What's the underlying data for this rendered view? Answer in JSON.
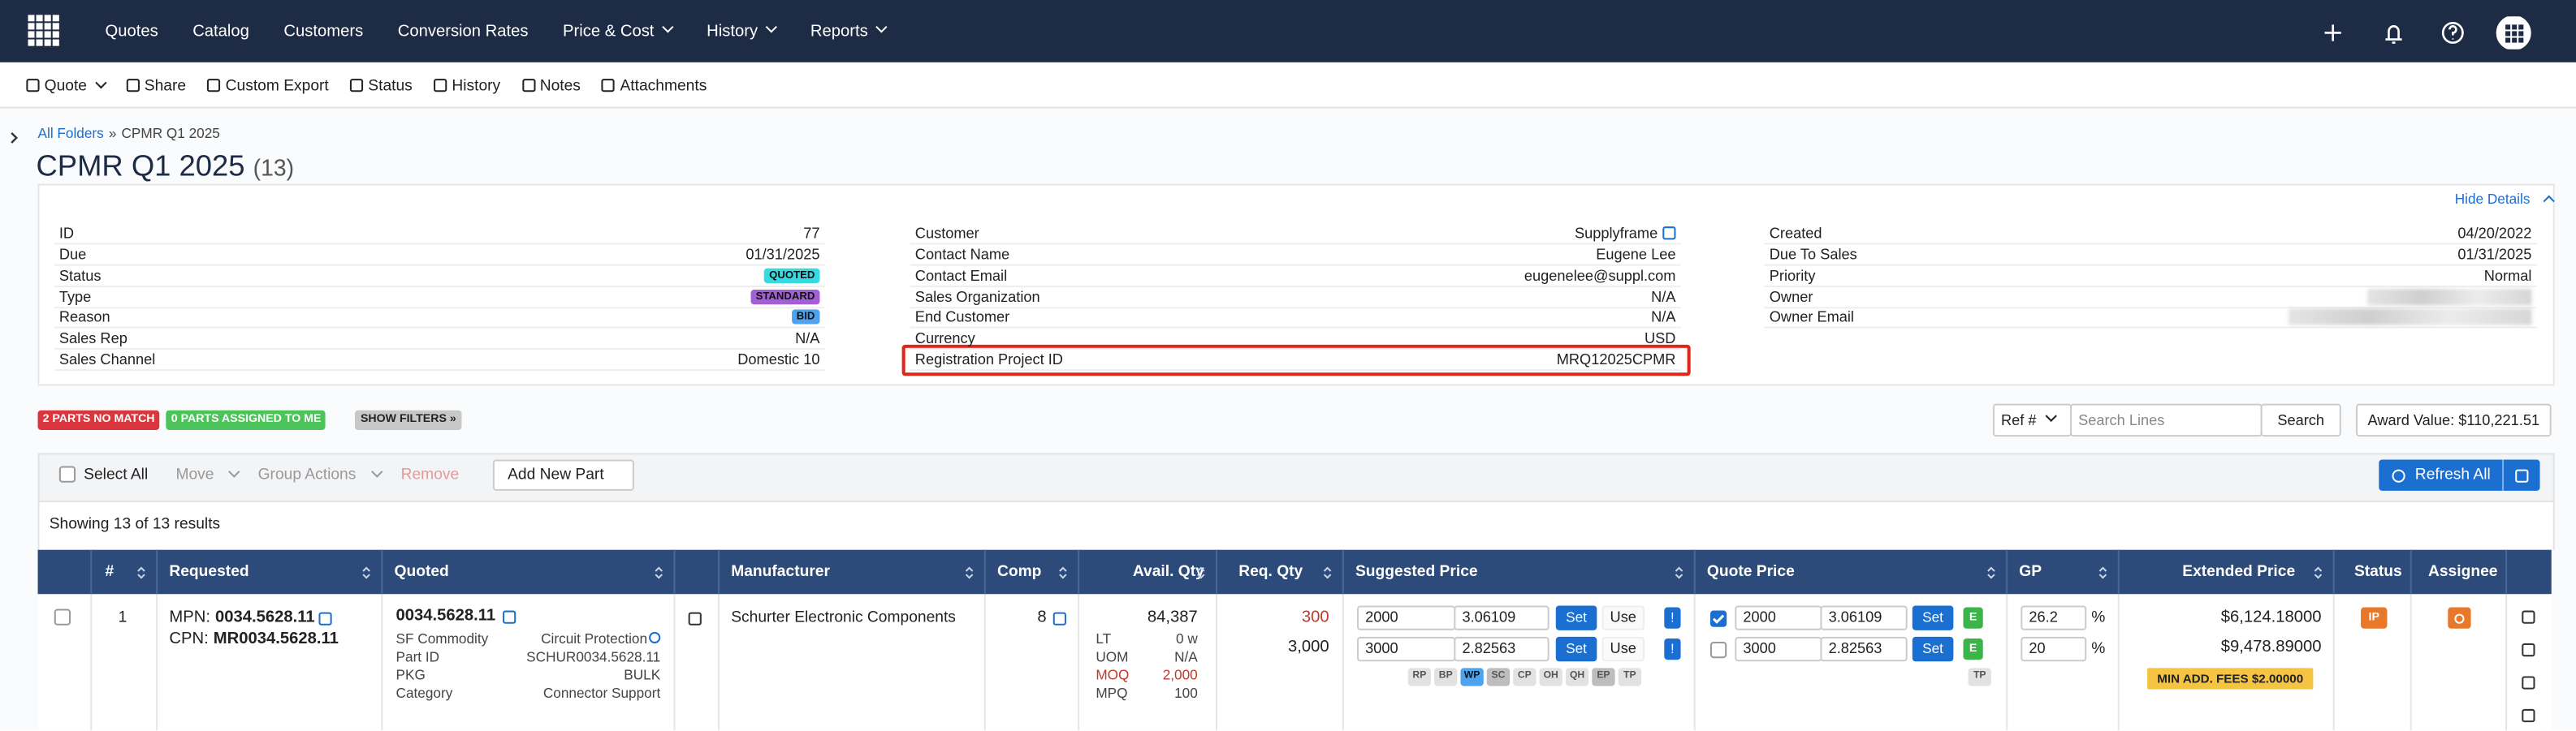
{
  "nav": {
    "items": [
      {
        "label": "Quotes"
      },
      {
        "label": "Catalog"
      },
      {
        "label": "Customers"
      },
      {
        "label": "Conversion Rates"
      },
      {
        "label": "Price & Cost",
        "dropdown": true
      },
      {
        "label": "History",
        "dropdown": true
      },
      {
        "label": "Reports",
        "dropdown": true
      }
    ]
  },
  "toolbar": {
    "items": [
      {
        "label": "Quote",
        "dropdown": true
      },
      {
        "label": "Share"
      },
      {
        "label": "Custom Export"
      },
      {
        "label": "Status"
      },
      {
        "label": "History"
      },
      {
        "label": "Notes"
      },
      {
        "label": "Attachments"
      }
    ]
  },
  "breadcrumb": {
    "parent": "All Folders",
    "separator": "»",
    "current": "CPMR Q1 2025"
  },
  "header": {
    "title": "CPMR Q1 2025",
    "count": "(13)",
    "hide_details": "Hide Details"
  },
  "details": {
    "columns": [
      [
        {
          "label": "ID",
          "value": "77"
        },
        {
          "label": "Due",
          "value": "01/31/2025"
        },
        {
          "label": "Status",
          "value": "QUOTED",
          "badge": "#35dbe0"
        },
        {
          "label": "Type",
          "value": "STANDARD",
          "badge": "#a35fd6"
        },
        {
          "label": "Reason",
          "value": "BID",
          "badge": "#4da3f0"
        },
        {
          "label": "Sales Rep",
          "value": "N/A"
        },
        {
          "label": "Sales Channel",
          "value": "Domestic 10"
        }
      ],
      [
        {
          "label": "Customer",
          "value": "Supplyframe"
        },
        {
          "label": "Contact Name",
          "value": "Eugene Lee"
        },
        {
          "label": "Contact Email",
          "value": "eugenelee@suppl.com"
        },
        {
          "label": "Sales Organization",
          "value": "N/A"
        },
        {
          "label": "End Customer",
          "value": "N/A"
        },
        {
          "label": "Currency",
          "value": "USD"
        },
        {
          "label": "Registration Project ID",
          "value": "MRQ12025CPMR",
          "highlight": true
        }
      ],
      [
        {
          "label": "Created",
          "value": "04/20/2022"
        },
        {
          "label": "Due To Sales",
          "value": "01/31/2025"
        },
        {
          "label": "Priority",
          "value": "Normal"
        },
        {
          "label": "Owner"
        },
        {
          "label": "Owner Email"
        }
      ]
    ]
  },
  "filters": [
    {
      "label": "2 PARTS NO MATCH",
      "color": "#d9363e"
    },
    {
      "label": "0 PARTS ASSIGNED TO ME",
      "color": "#4cc45a"
    },
    {
      "label": "SHOW FILTERS »",
      "color": "#c8c8c8"
    }
  ],
  "search": {
    "ref": "Ref #",
    "placeholder": "Search Lines",
    "button": "Search",
    "award": "Award Value: $110,221.51"
  },
  "actions": {
    "select_all": "Select All",
    "move": "Move",
    "group_actions": "Group Actions",
    "remove": "Remove",
    "add": "Add New Part",
    "refresh": "Refresh All"
  },
  "results": "Showing 13 of 13 results",
  "table": {
    "columns": [
      "#",
      "Requested",
      "Quoted",
      "Manufacturer",
      "Comp",
      "Avail. Qty",
      "Req. Qty",
      "Suggested Price",
      "Quote Price",
      "GP",
      "Extended Price",
      "Status",
      "Assignee"
    ],
    "rows": [
      {
        "index": "1",
        "requested": {
          "mpn_label": "MPN:",
          "mpn": "0034.5628.11",
          "cpn_label": "CPN:",
          "cpn": "MR0034.5628.11"
        },
        "quoted": {
          "part": "0034.5628.11",
          "attrs": [
            [
              "SF Commodity",
              "Circuit Protection"
            ],
            [
              "Part ID",
              "SCHUR0034.5628.11"
            ],
            [
              "PKG",
              "BULK"
            ],
            [
              "Category",
              "Connector Support"
            ]
          ]
        },
        "manufacturer": "Schurter Electronic Components",
        "comp": "8",
        "avail": {
          "qty": "84,387",
          "attrs": [
            [
              "LT",
              "0 w"
            ],
            [
              "UOM",
              "N/A"
            ],
            [
              "MOQ",
              "2,000"
            ],
            [
              "MPQ",
              "100"
            ]
          ]
        },
        "req_qty": [
          "300",
          "3,000"
        ],
        "suggested": {
          "breaks": [
            [
              "2000",
              "3.06109"
            ],
            [
              "3000",
              "2.82563"
            ]
          ],
          "set": "Set",
          "use": "Use",
          "flag": "!",
          "tags": [
            {
              "label": "RP",
              "color": "#e2e2e2"
            },
            {
              "label": "BP",
              "color": "#e2e2e2"
            },
            {
              "label": "WP",
              "color": "#4da3f0"
            },
            {
              "label": "SC",
              "color": "#bdbdbd"
            },
            {
              "label": "CP",
              "color": "#e2e2e2"
            },
            {
              "label": "OH",
              "color": "#e2e2e2"
            },
            {
              "label": "QH",
              "color": "#e2e2e2"
            },
            {
              "label": "EP",
              "color": "#bdbdbd"
            },
            {
              "label": "TP",
              "color": "#e2e2e2"
            }
          ]
        },
        "quote_price": {
          "breaks": [
            [
              "2000",
              "3.06109"
            ],
            [
              "3000",
              "2.82563"
            ]
          ],
          "set": "Set",
          "e": "E",
          "tag": "TP"
        },
        "gp": [
          [
            "26.2",
            "%"
          ],
          [
            "20",
            "%"
          ]
        ],
        "extended": [
          "$6,124.18000",
          "$9,478.89000"
        ],
        "fee": "MIN ADD. FEES $2.00000",
        "status": "IP"
      }
    ]
  }
}
